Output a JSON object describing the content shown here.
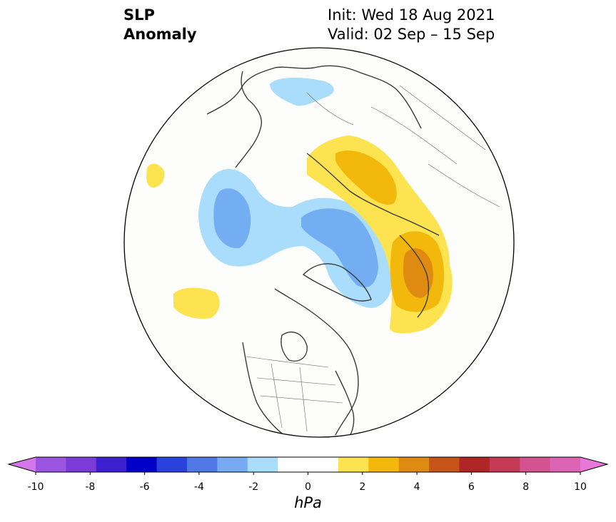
{
  "title": {
    "left_line1": "SLP",
    "left_line2": "Anomaly",
    "right_line1": "Init: Wed 18 Aug 2021",
    "right_line2": "Valid: 02 Sep – 15 Sep"
  },
  "map": {
    "projection": "north-polar-stereographic",
    "colors": {
      "blue_light": "#aadcfb",
      "blue_mid": "#74aef2",
      "blue_deep": "#4f7fe6",
      "yellow": "#fde34f",
      "gold": "#f3b80c",
      "orange": "#df8b12",
      "coast": "#333333"
    }
  },
  "colorbar": {
    "unit": "hPa",
    "ticks": [
      "-10",
      "-8",
      "-6",
      "-4",
      "-2",
      "0",
      "2",
      "4",
      "6",
      "8",
      "10"
    ],
    "colors": [
      "#9b55e1",
      "#7a3bd7",
      "#3c1fcf",
      "#0000c8",
      "#2a42dc",
      "#4f78e6",
      "#78aaf3",
      "#aadcfb",
      "#ffffff",
      "#ffffff",
      "#fde34f",
      "#f3b80c",
      "#df8b12",
      "#c65317",
      "#b02525",
      "#c53b55",
      "#d45290",
      "#dc64b5"
    ],
    "extend_low_color": "#d377e8",
    "extend_high_color": "#e777d8"
  }
}
